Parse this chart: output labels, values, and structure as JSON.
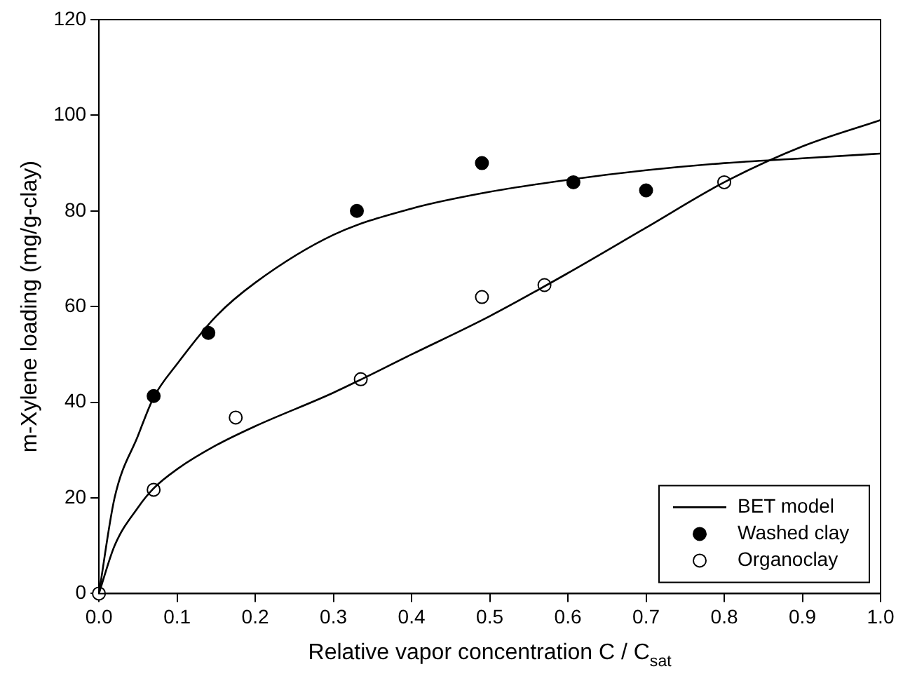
{
  "chart_data": {
    "type": "scatter",
    "xlabel": "Relative vapor concentration C / C$_{sat}$",
    "ylabel": "m-Xylene loading (mg/g-clay)",
    "xlim": [
      0,
      1
    ],
    "ylim": [
      0,
      120
    ],
    "xticks": [
      {
        "value": 0,
        "label": "0.0"
      },
      {
        "value": 0.1,
        "label": "0.1"
      },
      {
        "value": 0.2,
        "label": "0.2"
      },
      {
        "value": 0.3,
        "label": "0.3"
      },
      {
        "value": 0.4,
        "label": "0.4"
      },
      {
        "value": 0.5,
        "label": "0.5"
      },
      {
        "value": 0.6,
        "label": "0.6"
      },
      {
        "value": 0.7,
        "label": "0.7"
      },
      {
        "value": 0.8,
        "label": "0.8"
      },
      {
        "value": 0.9,
        "label": "0.9"
      },
      {
        "value": 1,
        "label": "1.0"
      }
    ],
    "yticks": [
      0,
      20,
      40,
      60,
      80,
      100,
      120
    ],
    "grid": false,
    "legend": "bottom right",
    "series": [
      {
        "name": "BET model",
        "type": "line",
        "color": "#000000",
        "x": [
          0,
          0.02,
          0.05,
          0.07,
          0.1,
          0.15,
          0.2,
          0.3,
          0.4,
          0.5,
          0.6,
          0.7,
          0.8,
          0.9,
          1.0
        ],
        "values": [
          0,
          20,
          33,
          41,
          48,
          58,
          65,
          75,
          80.5,
          84,
          86.5,
          88.5,
          90,
          91,
          92
        ]
      },
      {
        "type": "line",
        "color": "#000000",
        "x": [
          0,
          0.02,
          0.05,
          0.07,
          0.1,
          0.15,
          0.2,
          0.3,
          0.4,
          0.5,
          0.6,
          0.7,
          0.8,
          0.9,
          1.0
        ],
        "values": [
          0,
          10,
          18,
          22,
          26,
          31,
          35,
          42,
          50,
          58,
          67,
          76.5,
          86,
          93.5,
          99
        ]
      },
      {
        "name": "Washed clay",
        "marker": "circle",
        "color": "#000000",
        "x": [
          0.07,
          0.14,
          0.33,
          0.49,
          0.607,
          0.7
        ],
        "values": [
          41.3,
          54.5,
          80,
          90,
          86,
          84.3
        ]
      },
      {
        "name": "Organoclay",
        "marker": "circle",
        "color": "#ffffff",
        "x": [
          0,
          0.07,
          0.175,
          0.335,
          0.49,
          0.57,
          0.8
        ],
        "values": [
          0,
          21.7,
          36.8,
          44.8,
          62,
          64.5,
          86
        ]
      }
    ]
  }
}
